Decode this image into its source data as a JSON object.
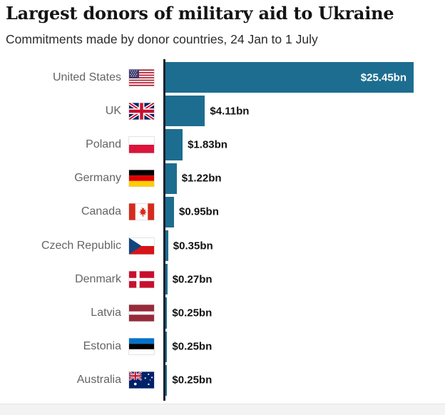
{
  "header": {
    "title": "Largest donors of military aid to Ukraine",
    "subtitle": "Commitments made by donor countries, 24 Jan to 1 July"
  },
  "chart_data": {
    "type": "bar",
    "orientation": "horizontal",
    "title": "Largest donors of military aid to Ukraine",
    "subtitle": "Commitments made by donor countries, 24 Jan to 1 July",
    "unit": "US $bn",
    "categories": [
      "United States",
      "UK",
      "Poland",
      "Germany",
      "Canada",
      "Czech Republic",
      "Denmark",
      "Latvia",
      "Estonia",
      "Australia"
    ],
    "values": [
      25.45,
      4.11,
      1.83,
      1.22,
      0.95,
      0.35,
      0.27,
      0.25,
      0.25,
      0.25
    ],
    "value_labels": [
      "$25.45bn",
      "$4.11bn",
      "$1.83bn",
      "$1.22bn",
      "$0.95bn",
      "$0.35bn",
      "$0.27bn",
      "$0.25bn",
      "$0.25bn",
      "$0.25bn"
    ],
    "value_label_position": [
      "inside",
      "outside",
      "outside",
      "outside",
      "outside",
      "outside",
      "outside",
      "outside",
      "outside",
      "outside"
    ],
    "flag_icons": [
      "us-flag",
      "uk-flag",
      "poland-flag",
      "germany-flag",
      "canada-flag",
      "czech-flag",
      "denmark-flag",
      "latvia-flag",
      "estonia-flag",
      "australia-flag"
    ],
    "xlim": [
      0,
      25.45
    ],
    "grid": false,
    "legend": false,
    "bar_color": "#1d6d90",
    "axis_color": "#18222c",
    "label_color": "#646464",
    "value_color": "#111111",
    "inside_value_color": "#ffffff"
  }
}
